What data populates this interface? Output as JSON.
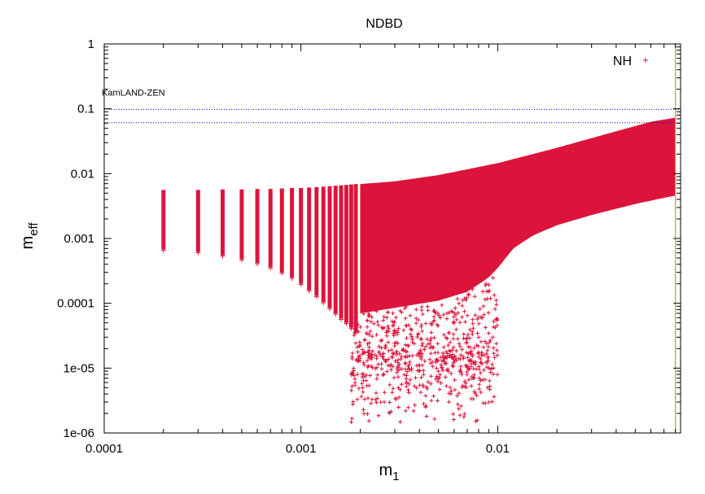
{
  "chart_data": {
    "type": "scatter",
    "title": "NDBD",
    "xlabel": {
      "base": "m",
      "sub": "1"
    },
    "ylabel": {
      "base": "m",
      "sub": "eff"
    },
    "xscale": "log",
    "yscale": "log",
    "xlim": [
      0.0001,
      0.085
    ],
    "ylim": [
      1e-06,
      1
    ],
    "x_ticks": [
      {
        "value": 0.0001,
        "label": "0.0001"
      },
      {
        "value": 0.001,
        "label": "0.001"
      },
      {
        "value": 0.01,
        "label": "0.01"
      }
    ],
    "y_ticks": [
      {
        "value": 1,
        "label": "1"
      },
      {
        "value": 0.1,
        "label": "0.1"
      },
      {
        "value": 0.01,
        "label": "0.01"
      },
      {
        "value": 0.001,
        "label": "0.001"
      },
      {
        "value": 0.0001,
        "label": "0.0001"
      },
      {
        "value": 1e-05,
        "label": "1e-05"
      },
      {
        "value": 1e-06,
        "label": "1e-06"
      }
    ],
    "grid": false,
    "legend": {
      "position": "top-right",
      "entries": [
        {
          "label": "NH",
          "marker": "+",
          "color": "#dc143c"
        }
      ]
    },
    "series": [
      {
        "name": "NH",
        "color": "#dc143c",
        "marker": "+",
        "bands": [
          {
            "m1": 0.0002,
            "min": 0.00068,
            "max": 0.0056
          },
          {
            "m1": 0.0003,
            "min": 0.00062,
            "max": 0.0056
          },
          {
            "m1": 0.0004,
            "min": 0.00055,
            "max": 0.0057
          },
          {
            "m1": 0.0005,
            "min": 0.00048,
            "max": 0.0057
          },
          {
            "m1": 0.0006,
            "min": 0.00042,
            "max": 0.0058
          },
          {
            "m1": 0.0007,
            "min": 0.00036,
            "max": 0.0058
          },
          {
            "m1": 0.0008,
            "min": 0.0003,
            "max": 0.0059
          },
          {
            "m1": 0.0009,
            "min": 0.00025,
            "max": 0.006
          },
          {
            "m1": 0.001,
            "min": 0.0002,
            "max": 0.006
          },
          {
            "m1": 0.0011,
            "min": 0.00016,
            "max": 0.0061
          },
          {
            "m1": 0.0012,
            "min": 0.00013,
            "max": 0.0062
          },
          {
            "m1": 0.0013,
            "min": 0.000105,
            "max": 0.0063
          },
          {
            "m1": 0.0014,
            "min": 8.5e-05,
            "max": 0.0064
          },
          {
            "m1": 0.0015,
            "min": 7e-05,
            "max": 0.0065
          },
          {
            "m1": 0.0016,
            "min": 5.8e-05,
            "max": 0.0066
          },
          {
            "m1": 0.0017,
            "min": 5e-05,
            "max": 0.0067
          },
          {
            "m1": 0.0018,
            "min": 4.2e-05,
            "max": 0.0068
          },
          {
            "m1": 0.0019,
            "min": 3.6e-05,
            "max": 0.0069
          }
        ],
        "continuous_region": {
          "x_range": [
            0.002,
            0.08
          ],
          "upper": [
            [
              0.002,
              0.0069
            ],
            [
              0.003,
              0.0076
            ],
            [
              0.005,
              0.0095
            ],
            [
              0.01,
              0.0145
            ],
            [
              0.02,
              0.025
            ],
            [
              0.04,
              0.045
            ],
            [
              0.06,
              0.063
            ],
            [
              0.08,
              0.073
            ]
          ],
          "lower": [
            [
              0.002,
              7e-05
            ],
            [
              0.003,
              8.5e-05
            ],
            [
              0.005,
              0.00011
            ],
            [
              0.007,
              0.00015
            ],
            [
              0.009,
              0.00025
            ],
            [
              0.01,
              0.00035
            ],
            [
              0.012,
              0.0007
            ],
            [
              0.015,
              0.0011
            ],
            [
              0.02,
              0.0016
            ],
            [
              0.03,
              0.0023
            ],
            [
              0.05,
              0.0034
            ],
            [
              0.08,
              0.0046
            ]
          ]
        },
        "sparse_points_range": {
          "x_range": [
            0.0018,
            0.01
          ],
          "y_min": 1.2e-06
        }
      }
    ],
    "reference_lines": [
      {
        "axis": "y",
        "value": 0.098,
        "style": "dotted",
        "color": "#00008b"
      },
      {
        "axis": "y",
        "value": 0.061,
        "style": "dotted",
        "color": "#00008b"
      },
      {
        "axis": "x",
        "value": 0.08,
        "style": "solid",
        "color": "#d2a020"
      }
    ],
    "annotations": [
      {
        "text": "KamLAND-ZEN",
        "x": 0.0001,
        "y": 0.18
      }
    ]
  }
}
